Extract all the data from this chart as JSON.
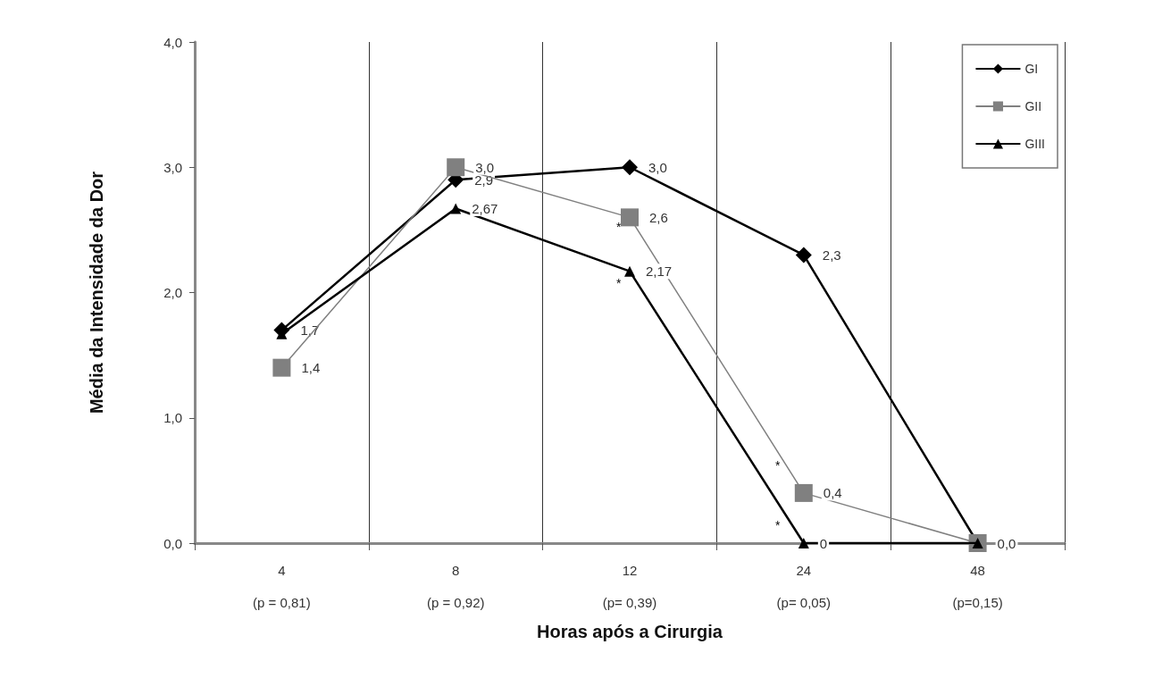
{
  "chart_data": {
    "type": "line",
    "xlabel": "Horas após a Cirurgia",
    "ylabel": "Média da Intensidade da Dor",
    "categories": [
      "4\n(p = 0,81)",
      "8\n(p = 0,92)",
      "12\n(p= 0,39)",
      "24\n(p= 0,05)",
      "48\n(p=0,15)"
    ],
    "series": [
      {
        "name": "GI",
        "color": "#000000",
        "marker": "diamond",
        "values": [
          1.7,
          2.9,
          3.0,
          2.3,
          0
        ],
        "value_labels": [
          "1,7",
          "2,9",
          "3,0",
          "2,3",
          null
        ]
      },
      {
        "name": "GII",
        "color": "#808080",
        "marker": "square",
        "values": [
          1.4,
          3.0,
          2.6,
          0.4,
          0
        ],
        "value_labels": [
          "1,4",
          "3,0",
          "2,6",
          "0,4",
          "0,0"
        ]
      },
      {
        "name": "GIII",
        "color": "#000000",
        "marker": "triangle",
        "values": [
          1.67,
          2.67,
          2.17,
          0,
          0
        ],
        "value_labels": [
          null,
          "2,67",
          "2,17",
          "0",
          null
        ]
      }
    ],
    "ylim": [
      0,
      4
    ],
    "yticks": [
      {
        "value": 0,
        "label": "0,0"
      },
      {
        "value": 1,
        "label": "1,0"
      },
      {
        "value": 2,
        "label": "2,0"
      },
      {
        "value": 3,
        "label": "3,0"
      },
      {
        "value": 4,
        "label": "4,0"
      }
    ],
    "annotations": [
      "*",
      "*",
      "*",
      "*"
    ],
    "grid": "x",
    "legend": "top right",
    "line_style": "solid"
  }
}
